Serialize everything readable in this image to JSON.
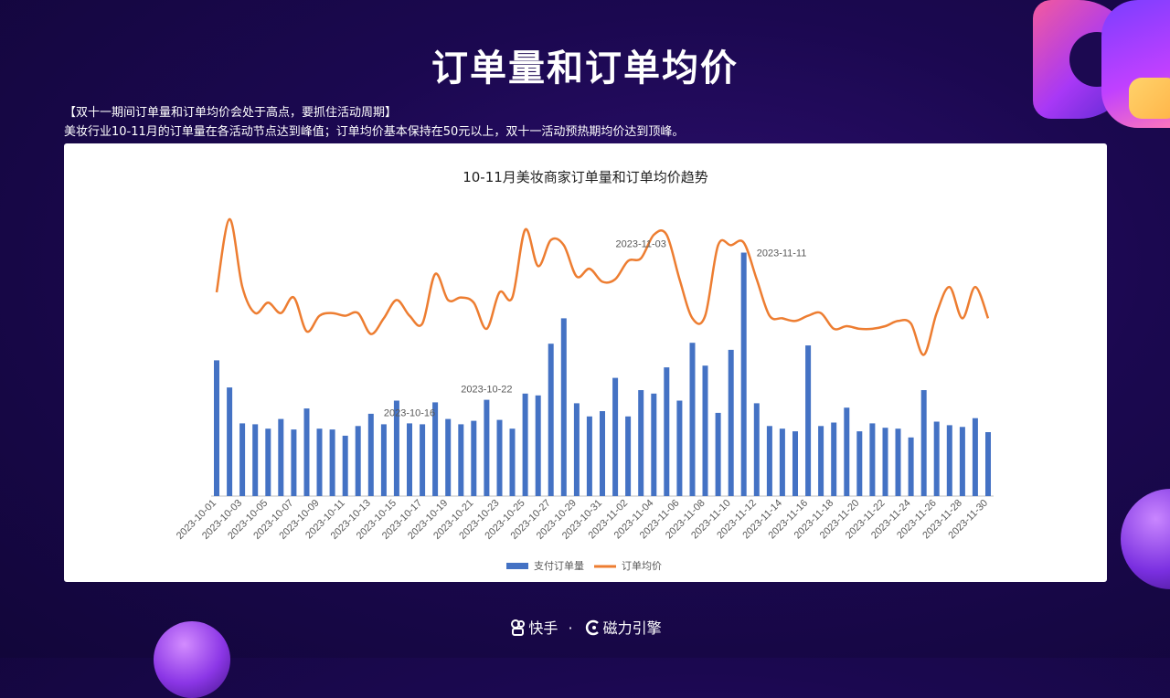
{
  "page": {
    "title": "订单量和订单均价",
    "subtitle_line1": "【双十一期间订单量和订单均价会处于高点，要抓住活动周期】",
    "subtitle_line2": "美妆行业10-11月的订单量在各活动节点达到峰值；订单均价基本保持在50元以上，双十一活动预热期均价达到顶峰。",
    "footer": {
      "brand1": "快手",
      "separator": "·",
      "brand2": "磁力引擎"
    }
  },
  "chart_data": {
    "type": "bar",
    "title": "10-11月美妆商家订单量和订单均价趋势",
    "xlabel": "",
    "ylabel": "",
    "legend_position": "bottom",
    "grid": false,
    "colors": {
      "bar": "#4472c4",
      "line": "#ed7d31"
    },
    "x_tick_labels": [
      "2023-10-01",
      "2023-10-03",
      "2023-10-05",
      "2023-10-07",
      "2023-10-09",
      "2023-10-11",
      "2023-10-13",
      "2023-10-15",
      "2023-10-17",
      "2023-10-19",
      "2023-10-21",
      "2023-10-23",
      "2023-10-25",
      "2023-10-27",
      "2023-10-29",
      "2023-10-31",
      "2023-11-02",
      "2023-11-04",
      "2023-11-06",
      "2023-11-08",
      "2023-11-10",
      "2023-11-12",
      "2023-11-14",
      "2023-11-16",
      "2023-11-18",
      "2023-11-20",
      "2023-11-22",
      "2023-11-24",
      "2023-11-26",
      "2023-11-28",
      "2023-11-30"
    ],
    "categories": [
      "2023-10-01",
      "2023-10-02",
      "2023-10-03",
      "2023-10-04",
      "2023-10-05",
      "2023-10-06",
      "2023-10-07",
      "2023-10-08",
      "2023-10-09",
      "2023-10-10",
      "2023-10-11",
      "2023-10-12",
      "2023-10-13",
      "2023-10-14",
      "2023-10-15",
      "2023-10-16",
      "2023-10-17",
      "2023-10-18",
      "2023-10-19",
      "2023-10-20",
      "2023-10-21",
      "2023-10-22",
      "2023-10-23",
      "2023-10-24",
      "2023-10-25",
      "2023-10-26",
      "2023-10-27",
      "2023-10-28",
      "2023-10-29",
      "2023-10-30",
      "2023-10-31",
      "2023-11-01",
      "2023-11-02",
      "2023-11-03",
      "2023-11-04",
      "2023-11-05",
      "2023-11-06",
      "2023-11-07",
      "2023-11-08",
      "2023-11-09",
      "2023-11-10",
      "2023-11-11",
      "2023-11-12",
      "2023-11-13",
      "2023-11-14",
      "2023-11-15",
      "2023-11-16",
      "2023-11-17",
      "2023-11-18",
      "2023-11-19",
      "2023-11-20",
      "2023-11-21",
      "2023-11-22",
      "2023-11-23",
      "2023-11-24",
      "2023-11-25",
      "2023-11-26",
      "2023-11-27",
      "2023-11-28",
      "2023-11-29",
      "2023-11-30"
    ],
    "series": [
      {
        "name": "支付订单量",
        "kind": "bar",
        "values": [
          155,
          124,
          83,
          82,
          77,
          88,
          76,
          100,
          77,
          76,
          69,
          80,
          94,
          82,
          109,
          83,
          82,
          107,
          88,
          82,
          86,
          110,
          87,
          77,
          117,
          115,
          174,
          203,
          106,
          91,
          97,
          135,
          91,
          121,
          117,
          147,
          109,
          175,
          149,
          95,
          167,
          278,
          106,
          80,
          77,
          74,
          172,
          80,
          84,
          101,
          74,
          83,
          78,
          77,
          67,
          121,
          85,
          81,
          79,
          89,
          73
        ]
      },
      {
        "name": "订单均价",
        "kind": "line",
        "values": [
          74,
          102,
          76,
          66,
          70,
          66,
          72,
          59,
          65,
          66,
          65,
          66,
          58,
          64,
          71,
          65,
          62,
          81,
          71,
          72,
          70,
          60,
          74,
          72,
          98,
          84,
          94,
          92,
          80,
          83,
          78,
          79,
          86,
          87,
          96,
          96,
          79,
          64,
          65,
          92,
          92,
          93,
          79,
          65,
          64,
          63,
          65,
          66,
          60,
          61,
          60,
          60,
          61,
          63,
          62,
          50,
          66,
          76,
          64,
          76,
          64
        ]
      }
    ],
    "annotations": [
      {
        "text": "2023-10-16",
        "category": "2023-10-16",
        "series": "支付订单量"
      },
      {
        "text": "2023-10-22",
        "category": "2023-10-22",
        "series": "支付订单量"
      },
      {
        "text": "2023-11-03",
        "category": "2023-11-03",
        "series": "订单均价"
      },
      {
        "text": "2023-11-11",
        "category": "2023-11-11",
        "series": "支付订单量"
      }
    ]
  }
}
